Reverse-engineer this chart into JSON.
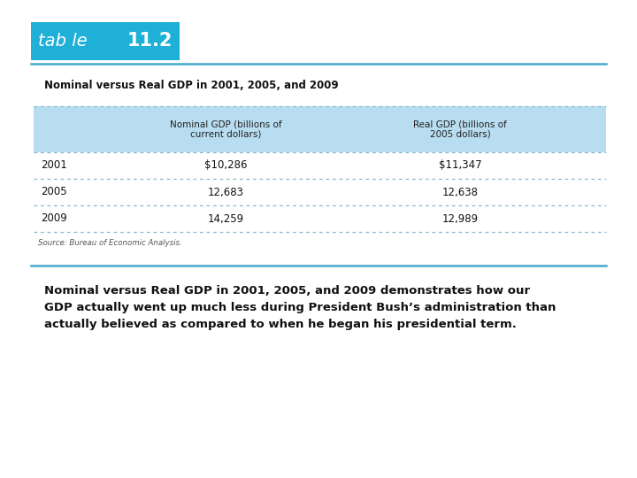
{
  "table_title": "Nominal versus Real GDP in 2001, 2005, and 2009",
  "table_label_normal": "tab le",
  "table_number": "11.2",
  "col_headers": [
    "",
    "Nominal GDP (billions of\ncurrent dollars)",
    "Real GDP (billions of\n2005 dollars)"
  ],
  "rows": [
    [
      "2001",
      "$10,286",
      "$11,347"
    ],
    [
      "2005",
      "12,683",
      "12,638"
    ],
    [
      "2009",
      "14,259",
      "12,989"
    ]
  ],
  "source_text": "Source: Bureau of Economic Analysis.",
  "caption_line1": "Nominal versus Real GDP in 2001, 2005, and 2009 demonstrates how our",
  "caption_line2": "GDP actually went up much less during President Bush’s administration than",
  "caption_line3": "actually believed as compared to when he began his presidential term.",
  "header_bg_color": "#b8ddf0",
  "table_border_color": "#88bbcc",
  "tab_bg_color": "#1fb0d8",
  "tab_text_color": "#ffffff",
  "body_bg_color": "#ffffff",
  "title_color": "#111111",
  "caption_color": "#111111",
  "source_color": "#555555",
  "rule_color": "#44aacc",
  "fig_bg_color": "#ffffff"
}
